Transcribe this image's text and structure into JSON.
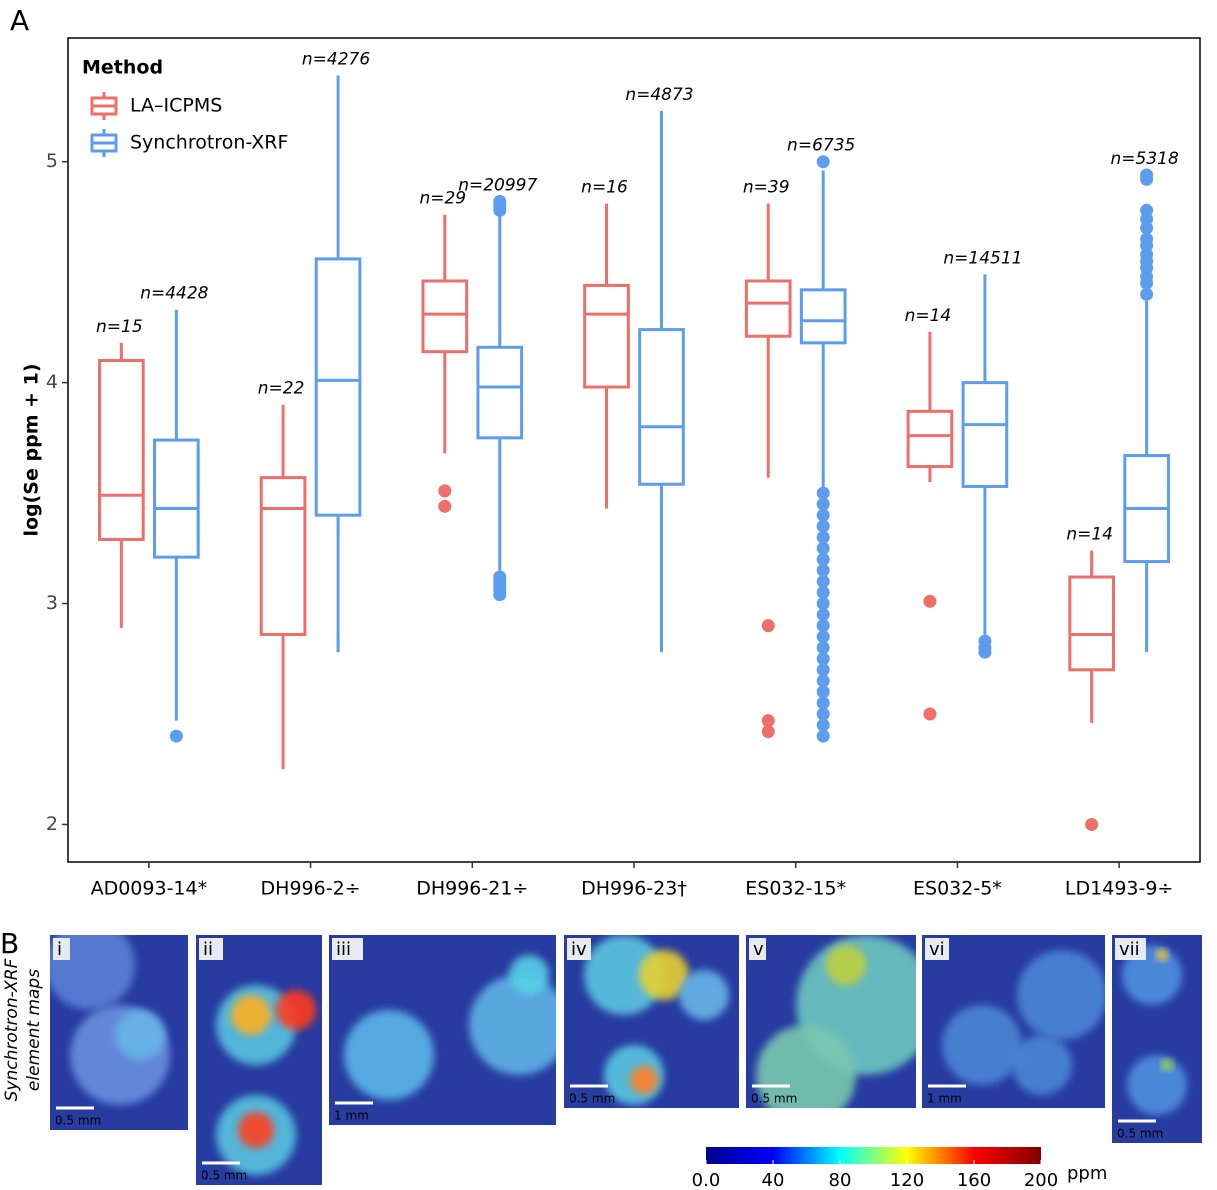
{
  "panels": {
    "a": "A",
    "b": "B"
  },
  "maps_title": [
    "Synchrotron-XRF",
    "element maps"
  ],
  "maps": [
    {
      "label": "i",
      "scale": "0.5 mm"
    },
    {
      "label": "ii",
      "scale": "0.5 mm"
    },
    {
      "label": "iii",
      "scale": "1 mm"
    },
    {
      "label": "iv",
      "scale": "0.5 mm"
    },
    {
      "label": "v",
      "scale": "0.5 mm"
    },
    {
      "label": "vi",
      "scale": "1 mm"
    },
    {
      "label": "vii",
      "scale": "0.5 mm"
    }
  ],
  "chart_data": [
    {
      "type": "boxplot",
      "y_label": "log(Se ppm + 1)",
      "legend_title": "Method",
      "legend": "top-left",
      "categories": [
        "AD0093-14*",
        "DH996-2÷",
        "DH996-21÷",
        "DH996-23†",
        "ES032-15*",
        "ES032-5*",
        "LD1493-9÷"
      ],
      "ylim": [
        1.83,
        5.56
      ],
      "yticks": [
        2,
        3,
        4,
        5
      ],
      "series": [
        {
          "name": "LA–ICPMS",
          "color": "#ee6f69",
          "n_labels": [
            "n=15",
            "n=22",
            "n=29",
            "n=16",
            "n=39",
            "n=14",
            "n=14"
          ],
          "whisker_low": [
            2.89,
            2.25,
            3.68,
            3.43,
            3.57,
            3.55,
            2.46
          ],
          "q1": [
            3.29,
            2.86,
            4.14,
            3.98,
            4.21,
            3.62,
            2.7
          ],
          "median": [
            3.49,
            3.43,
            4.31,
            4.31,
            4.36,
            3.76,
            2.86
          ],
          "q3": [
            4.1,
            3.57,
            4.46,
            4.44,
            4.46,
            3.87,
            3.12
          ],
          "whisker_high": [
            4.18,
            3.9,
            4.76,
            4.81,
            4.81,
            4.23,
            3.24
          ],
          "outliers": [
            [],
            [],
            [
              3.51,
              3.44
            ],
            [],
            [
              2.9,
              2.47,
              2.42
            ],
            [
              3.01,
              2.5
            ],
            [
              2.0
            ]
          ]
        },
        {
          "name": "Synchrotron-XRF",
          "color": "#5d9ded",
          "n_labels": [
            "n=4428",
            "n=4276",
            "n=20997",
            "n=4873",
            "n=6735",
            "n=14511",
            "n=5318"
          ],
          "whisker_low": [
            2.47,
            2.78,
            3.15,
            2.78,
            3.52,
            2.86,
            2.78
          ],
          "q1": [
            3.21,
            3.4,
            3.75,
            3.54,
            4.18,
            3.53,
            3.19
          ],
          "median": [
            3.43,
            4.01,
            3.98,
            3.8,
            4.28,
            3.81,
            3.43
          ],
          "q3": [
            3.74,
            4.56,
            4.16,
            4.24,
            4.42,
            4.0,
            3.67
          ],
          "whisker_high": [
            4.33,
            5.39,
            4.76,
            5.23,
            4.96,
            4.49,
            4.37
          ],
          "outliers": [
            [
              2.4
            ],
            [],
            [
              4.78,
              4.8,
              4.82,
              3.12,
              3.1,
              3.08,
              3.06,
              3.04
            ],
            [],
            [
              5.0,
              3.5,
              3.45,
              3.4,
              3.35,
              3.3,
              3.25,
              3.2,
              3.15,
              3.1,
              3.05,
              3.0,
              2.95,
              2.9,
              2.85,
              2.8,
              2.75,
              2.7,
              2.65,
              2.6,
              2.55,
              2.5,
              2.45,
              2.4
            ],
            [
              2.83,
              2.8,
              2.78
            ],
            [
              4.4,
              4.45,
              4.48,
              4.52,
              4.55,
              4.58,
              4.62,
              4.65,
              4.7,
              4.74,
              4.78,
              4.92,
              4.94
            ]
          ]
        }
      ]
    },
    {
      "type": "colorbar",
      "unit": "ppm",
      "xlim": [
        0,
        200
      ],
      "xticks": [
        {
          "value": 0,
          "label": "0.0"
        },
        40,
        80,
        120,
        160,
        200
      ],
      "colors": [
        "#00008f",
        "#0000ff",
        "#00ffff",
        "#ffff00",
        "#ff0000",
        "#800000"
      ]
    }
  ]
}
